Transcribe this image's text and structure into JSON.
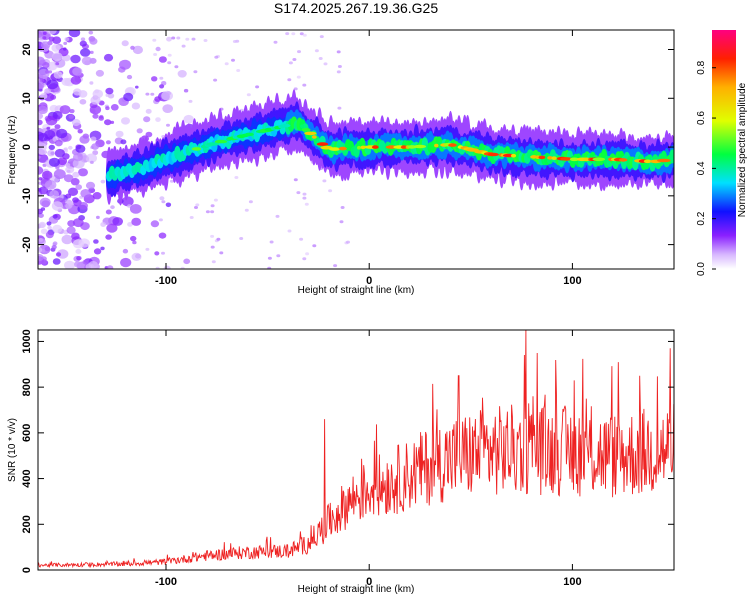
{
  "chart_data": [
    {
      "type": "heatmap",
      "title": "S174.2025.267.19.36.G25",
      "xlabel": "Height of straight line (km)",
      "ylabel": "Frequency (Hz)",
      "xlim": [
        -163,
        150
      ],
      "ylim": [
        -25,
        24
      ],
      "xticks": [
        -100,
        0,
        100
      ],
      "yticks": [
        20,
        10,
        0,
        -10,
        -20
      ],
      "colorbar": {
        "label": "Normalized spectral amplitude",
        "range": [
          0.0,
          0.95
        ],
        "ticks": [
          "0.0",
          "0.2",
          "0.4",
          "0.6",
          "0.8"
        ],
        "tick_values": [
          0.0,
          0.2,
          0.4,
          0.6,
          0.8
        ],
        "colors": [
          "#ffffff",
          "#c8a0ff",
          "#7a00ff",
          "#0000ff",
          "#00ffff",
          "#00ff00",
          "#ffff00",
          "#ff8000",
          "#ff0000",
          "#ff0080"
        ]
      },
      "ridge": {
        "x": [
          -128,
          -110,
          -90,
          -70,
          -50,
          -35,
          -20,
          0,
          20,
          40,
          60,
          80,
          100,
          120,
          140,
          150
        ],
        "freq": [
          -6,
          -4,
          -1,
          1.5,
          3.5,
          5,
          -0.5,
          0,
          0,
          0.5,
          -1.5,
          -2,
          -2.5,
          -2.5,
          -3,
          -2.5
        ]
      }
    },
    {
      "type": "line",
      "xlabel": "Height of straight line (km)",
      "ylabel": "SNR (10 * v/v)",
      "xlim": [
        -163,
        150
      ],
      "ylim": [
        0,
        1050
      ],
      "xticks": [
        -100,
        0,
        100
      ],
      "yticks": [
        0,
        200,
        400,
        600,
        800,
        1000
      ],
      "series": [
        {
          "name": "SNR",
          "color": "#ee2222",
          "envelope_x": [
            -163,
            -120,
            -100,
            -80,
            -60,
            -40,
            -30,
            -20,
            -10,
            0,
            10,
            20,
            30,
            40,
            60,
            80,
            100,
            120,
            140,
            150
          ],
          "envelope_y": [
            20,
            25,
            35,
            60,
            75,
            80,
            110,
            200,
            290,
            340,
            370,
            400,
            440,
            470,
            500,
            510,
            500,
            480,
            500,
            510
          ],
          "spikes": [
            {
              "x": -22,
              "y": 660
            },
            {
              "x": 44,
              "y": 850
            },
            {
              "x": 77,
              "y": 1050
            },
            {
              "x": 148,
              "y": 970
            }
          ]
        }
      ]
    }
  ]
}
